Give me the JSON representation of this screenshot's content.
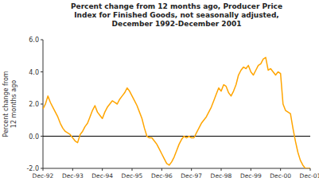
{
  "chart_data": {
    "type": "line",
    "title": "Percent change from 12 months ago, Producer Price\nIndex for Finished Goods, not seasonally adjusted,\nDecember 1992-December 2001",
    "y_label": "Percent change from\n12 months ago",
    "color": "#FFA500",
    "grid": false,
    "ylim": [
      -2.0,
      6.0
    ],
    "yticks": [
      {
        "value": -2.0,
        "label": "-2.0"
      },
      {
        "value": 0.0,
        "label": "0.0"
      },
      {
        "value": 2.0,
        "label": "2.0"
      },
      {
        "value": 4.0,
        "label": "4.0"
      },
      {
        "value": 6.0,
        "label": "6.0"
      }
    ],
    "categories": [
      "Dec-92",
      null,
      null,
      null,
      null,
      null,
      null,
      null,
      null,
      null,
      null,
      null,
      "Dec-93",
      null,
      null,
      null,
      null,
      null,
      null,
      null,
      null,
      null,
      null,
      null,
      "Dec-94",
      null,
      null,
      null,
      null,
      null,
      null,
      null,
      null,
      null,
      null,
      null,
      "Dec-95",
      null,
      null,
      null,
      null,
      null,
      null,
      null,
      null,
      null,
      null,
      null,
      "Dec-96",
      null,
      null,
      null,
      null,
      null,
      null,
      null,
      null,
      null,
      null,
      null,
      "Dec-97",
      null,
      null,
      null,
      null,
      null,
      null,
      null,
      null,
      null,
      null,
      null,
      "Dec-98",
      null,
      null,
      null,
      null,
      null,
      null,
      null,
      null,
      null,
      null,
      null,
      "Dec-99",
      null,
      null,
      null,
      null,
      null,
      null,
      null,
      null,
      null,
      null,
      null,
      "Dec-00",
      null,
      null,
      null,
      null,
      null,
      null,
      null,
      null,
      null,
      null,
      null,
      "Dec-01"
    ],
    "values": [
      1.7,
      2.0,
      2.5,
      2.1,
      1.8,
      1.5,
      1.2,
      0.8,
      0.5,
      0.3,
      0.2,
      0.1,
      -0.1,
      -0.3,
      -0.4,
      0.1,
      0.3,
      0.6,
      0.8,
      1.2,
      1.6,
      1.9,
      1.5,
      1.3,
      1.1,
      1.5,
      1.8,
      2.0,
      2.2,
      2.1,
      2.0,
      2.3,
      2.5,
      2.7,
      3.0,
      2.8,
      2.5,
      2.2,
      1.9,
      1.5,
      1.1,
      0.5,
      0.0,
      -0.1,
      -0.1,
      -0.3,
      -0.5,
      -0.8,
      -1.1,
      -1.4,
      -1.7,
      -1.8,
      -1.6,
      -1.3,
      -0.9,
      -0.5,
      -0.2,
      0.0,
      -0.1,
      0.0,
      -0.1,
      -0.1,
      0.2,
      0.5,
      0.8,
      1.0,
      1.2,
      1.5,
      1.8,
      2.2,
      2.6,
      3.0,
      2.8,
      3.2,
      3.1,
      2.7,
      2.5,
      2.8,
      3.2,
      3.8,
      4.1,
      4.3,
      4.2,
      4.4,
      4.0,
      3.8,
      4.1,
      4.4,
      4.5,
      4.8,
      4.9,
      4.1,
      4.2,
      4.0,
      3.8,
      4.0,
      3.9,
      2.0,
      1.6,
      1.5,
      1.4,
      0.5,
      -0.3,
      -1.0,
      -1.5,
      -1.8,
      -2.0,
      -2.0,
      -2.0
    ]
  }
}
